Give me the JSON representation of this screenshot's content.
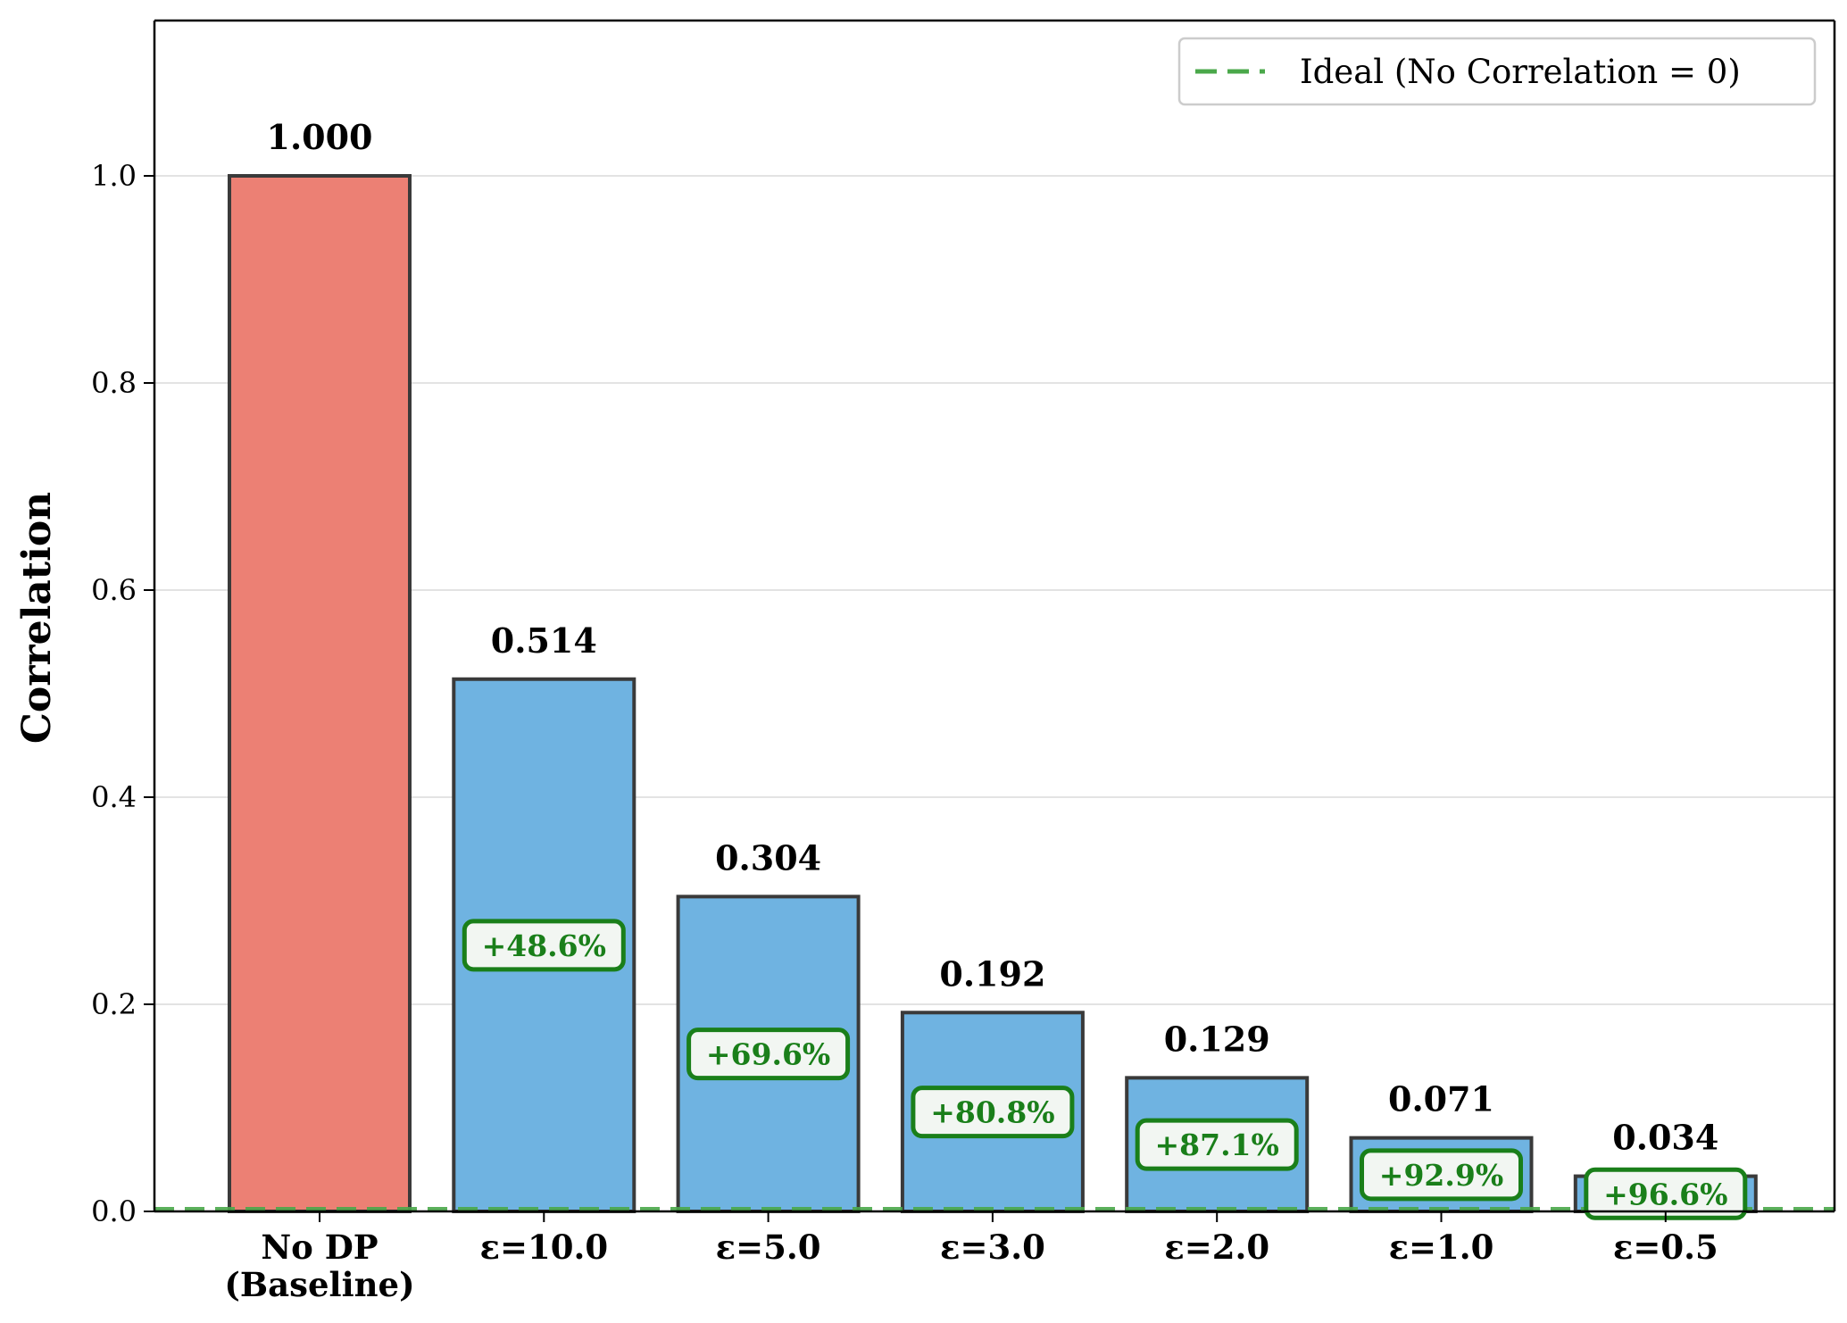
{
  "chart_data": {
    "type": "bar",
    "title": "",
    "xlabel": "",
    "ylabel": "Correlation",
    "ylim": [
      0,
      1.15
    ],
    "yticks": [
      "0.0",
      "0.2",
      "0.4",
      "0.6",
      "0.8",
      "1.0"
    ],
    "grid": "horizontal",
    "categories": [
      [
        "No DP",
        "(Baseline)"
      ],
      [
        "ε=10.0"
      ],
      [
        "ε=5.0"
      ],
      [
        "ε=3.0"
      ],
      [
        "ε=2.0"
      ],
      [
        "ε=1.0"
      ],
      [
        "ε=0.5"
      ]
    ],
    "values": [
      1.0,
      0.514,
      0.304,
      0.192,
      0.129,
      0.071,
      0.034
    ],
    "value_labels": [
      "1.000",
      "0.514",
      "0.304",
      "0.192",
      "0.129",
      "0.071",
      "0.034"
    ],
    "improvement_labels": [
      "",
      "+48.6%",
      "+69.6%",
      "+80.8%",
      "+87.1%",
      "+92.9%",
      "+96.6%"
    ],
    "bar_colors": [
      "#ec8074",
      "#6fb3e1",
      "#6fb3e1",
      "#6fb3e1",
      "#6fb3e1",
      "#6fb3e1",
      "#6fb3e1"
    ],
    "bar_edge_color": "#3a3a3a",
    "reference_line": {
      "value": 0,
      "label": "Ideal (No Correlation = 0)",
      "color": "#4aa84a",
      "style": "dashed"
    },
    "legend": {
      "placement": "top-right",
      "entries": [
        "Ideal (No Correlation = 0)"
      ]
    },
    "annotation_color": "#1a7f1a"
  }
}
